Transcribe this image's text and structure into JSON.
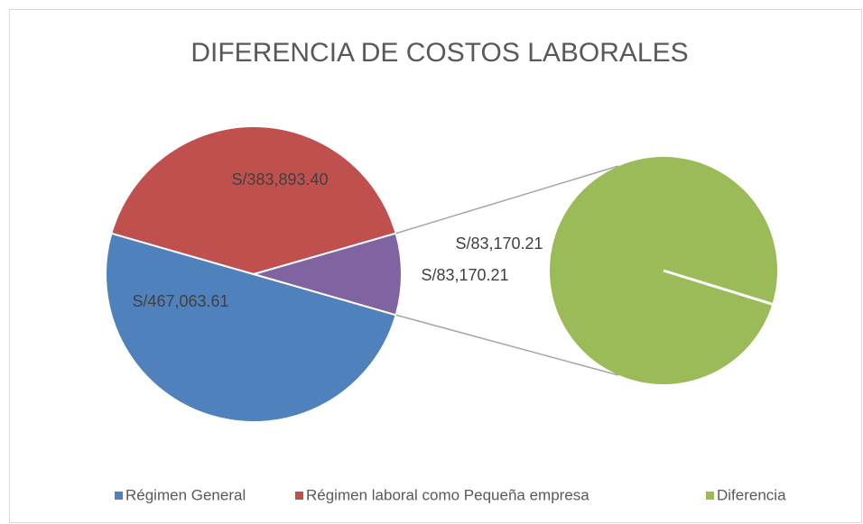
{
  "chart_data": {
    "type": "pie_of_pie",
    "title": "DIFERENCIA DE COSTOS LABORALES",
    "categories": [
      "Régimen General",
      "Régimen laboral como Pequeña empresa",
      "Diferencia"
    ],
    "values": [
      467063.61,
      383893.4,
      83170.21
    ],
    "value_labels": [
      "S/467,063.61",
      "S/383,893.40",
      "S/83,170.21"
    ],
    "colors": [
      "#4f81bd",
      "#c0504d",
      "#9bbb59"
    ],
    "other_color": "#8064a2",
    "legend": "bottom"
  }
}
